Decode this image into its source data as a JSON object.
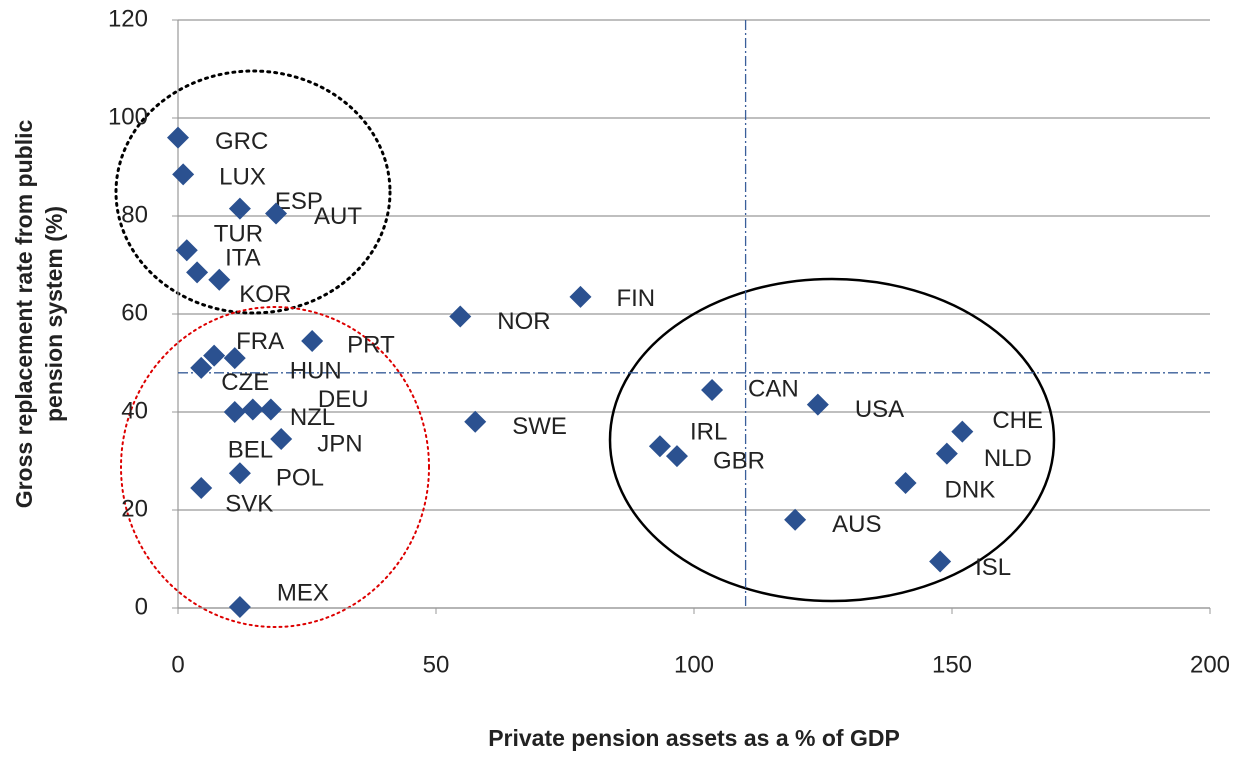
{
  "chart_data": {
    "type": "scatter",
    "xlabel": "Private pension assets as a % of GDP",
    "ylabel": [
      "Gross replacement rate from public",
      "pension system (%)"
    ],
    "color": "#2b5190",
    "grid": true,
    "xlim": [
      0,
      200
    ],
    "xticks": [
      0,
      50,
      100,
      150,
      200
    ],
    "ylim": [
      0,
      120
    ],
    "yticks": [
      0,
      20,
      40,
      60,
      80,
      100,
      120
    ],
    "ref_x": 110,
    "ref_y": 48,
    "categories": [
      "GRC",
      "LUX",
      "ESP",
      "AUT",
      "TUR",
      "ITA",
      "KOR",
      "FIN",
      "NOR",
      "PRT",
      "CZE",
      "FRA",
      "HUN",
      "BEL",
      "NZL",
      "DEU",
      "JPN",
      "POL",
      "SVK",
      "MEX",
      "SWE",
      "CAN",
      "USA",
      "IRL",
      "GBR",
      "CHE",
      "NLD",
      "DNK",
      "AUS",
      "ISL"
    ],
    "x": [
      0,
      1,
      12,
      19,
      1.7,
      3.7,
      8,
      78,
      54.7,
      26,
      4.5,
      7,
      11,
      11,
      14.5,
      18,
      20,
      12,
      4.5,
      12,
      57.6,
      103.5,
      124,
      93.4,
      96.7,
      152,
      149,
      141,
      119.6,
      147.7
    ],
    "values": [
      96,
      88.5,
      81.5,
      80.5,
      73,
      68.5,
      67,
      63.5,
      59.5,
      54.5,
      49,
      51.5,
      51,
      40,
      40.5,
      40.5,
      34.5,
      27.5,
      24.5,
      0.2,
      38,
      44.5,
      41.5,
      33,
      31,
      36,
      31.5,
      25.5,
      18,
      9.5
    ]
  }
}
